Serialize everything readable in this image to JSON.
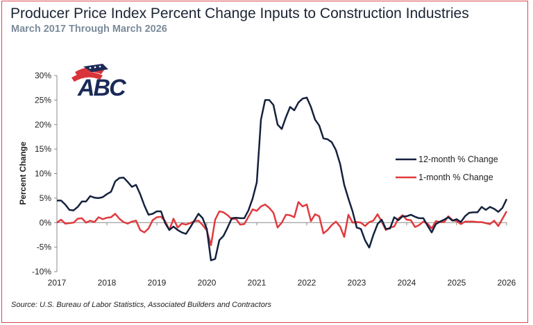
{
  "header": {
    "title": "Producer Price Index Percent Change Inputs to Construction Industries",
    "subtitle": "March 2017 Through March 2026"
  },
  "logo": {
    "text": "ABC",
    "colors": {
      "navy": "#1b2a57",
      "red": "#d9343a"
    }
  },
  "source": "Source: U.S. Bureau of Labor Statistics, Associated Builders and Contractors",
  "chart_data": {
    "type": "line",
    "title": "Producer Price Index Percent Change Inputs to Construction Industries",
    "subtitle": "March 2017 Through March 2026",
    "xlabel": "",
    "ylabel": "Percent Change",
    "x_start": "2017-03",
    "x_end": "2026-03",
    "frequency": "monthly",
    "xticks": [
      "2017",
      "2018",
      "2019",
      "2020",
      "2021",
      "2022",
      "2023",
      "2024",
      "2025",
      "2026"
    ],
    "yticks": [
      "-10%",
      "-5%",
      "0%",
      "5%",
      "10%",
      "15%",
      "20%",
      "25%",
      "30%"
    ],
    "ylim": [
      -10,
      30
    ],
    "grid": false,
    "legend": "right",
    "series": [
      {
        "name": "12-month % Change",
        "color": "#14213d",
        "values": [
          4.5,
          4.5,
          3.7,
          2.6,
          2.5,
          3.2,
          4.3,
          4.3,
          5.4,
          5.1,
          5.0,
          5.2,
          5.8,
          6.3,
          8.4,
          9.1,
          9.2,
          8.3,
          7.3,
          7.7,
          5.8,
          3.5,
          1.6,
          1.8,
          2.3,
          2.3,
          -0.1,
          -1.5,
          -0.8,
          -1.5,
          -2.0,
          -2.3,
          -1.0,
          0.4,
          1.8,
          0.9,
          -1.3,
          -7.7,
          -7.4,
          -3.6,
          -2.7,
          -1.0,
          0.9,
          1.0,
          0.9,
          0.9,
          2.5,
          4.9,
          8.2,
          21.0,
          25.0,
          25.0,
          24.0,
          20.0,
          19.1,
          21.5,
          23.6,
          22.9,
          24.5,
          25.3,
          25.5,
          23.6,
          21.0,
          19.8,
          17.2,
          17.0,
          16.4,
          14.8,
          12.0,
          7.7,
          4.9,
          2.3,
          -1.0,
          -1.3,
          -3.6,
          -5.1,
          -2.5,
          -0.3,
          0.6,
          -1.3,
          -1.2,
          1.1,
          0.5,
          1.3,
          1.3,
          1.6,
          1.2,
          0.9,
          0.9,
          -0.6,
          -2.0,
          -0.3,
          0.2,
          0.6,
          1.1,
          0.4,
          0.7,
          0.1,
          1.3,
          2.0,
          2.1,
          2.1,
          3.2,
          2.6,
          3.2,
          2.8,
          2.2,
          3.0,
          4.8
        ]
      },
      {
        "name": "1-month % Change",
        "color": "#e03a3e",
        "values": [
          0.0,
          0.6,
          -0.2,
          -0.1,
          0.0,
          0.8,
          0.9,
          0.0,
          0.4,
          0.1,
          1.1,
          0.7,
          1.0,
          1.1,
          1.8,
          0.8,
          0.1,
          -0.2,
          0.2,
          0.4,
          -1.5,
          -2.0,
          -1.2,
          0.5,
          1.1,
          1.2,
          0.3,
          -1.5,
          0.8,
          -1.0,
          -0.2,
          -0.4,
          -0.1,
          0.3,
          0.4,
          -0.5,
          -1.6,
          -4.6,
          0.6,
          2.3,
          2.1,
          1.5,
          0.7,
          0.8,
          -0.4,
          -0.3,
          1.2,
          2.7,
          2.4,
          3.3,
          3.7,
          3.0,
          2.0,
          -1.0,
          0.0,
          1.6,
          1.5,
          1.1,
          4.2,
          3.3,
          3.7,
          0.3,
          1.7,
          1.3,
          -2.2,
          -1.5,
          -0.5,
          0.2,
          -0.8,
          -2.9,
          1.6,
          0.0,
          0.1,
          0.0,
          -0.7,
          0.1,
          0.4,
          1.7,
          0.2,
          -1.5,
          -1.0,
          -0.8,
          0.8,
          1.5,
          0.6,
          0.5,
          -0.9,
          -0.5,
          0.2,
          -0.2,
          -1.2,
          0.3,
          0.1,
          0.1,
          1.3,
          0.5,
          0.3,
          -0.3,
          0.2,
          0.2,
          0.2,
          0.1,
          0.1,
          -0.1,
          -0.3,
          0.4,
          -0.7,
          0.8,
          2.3
        ]
      }
    ]
  }
}
